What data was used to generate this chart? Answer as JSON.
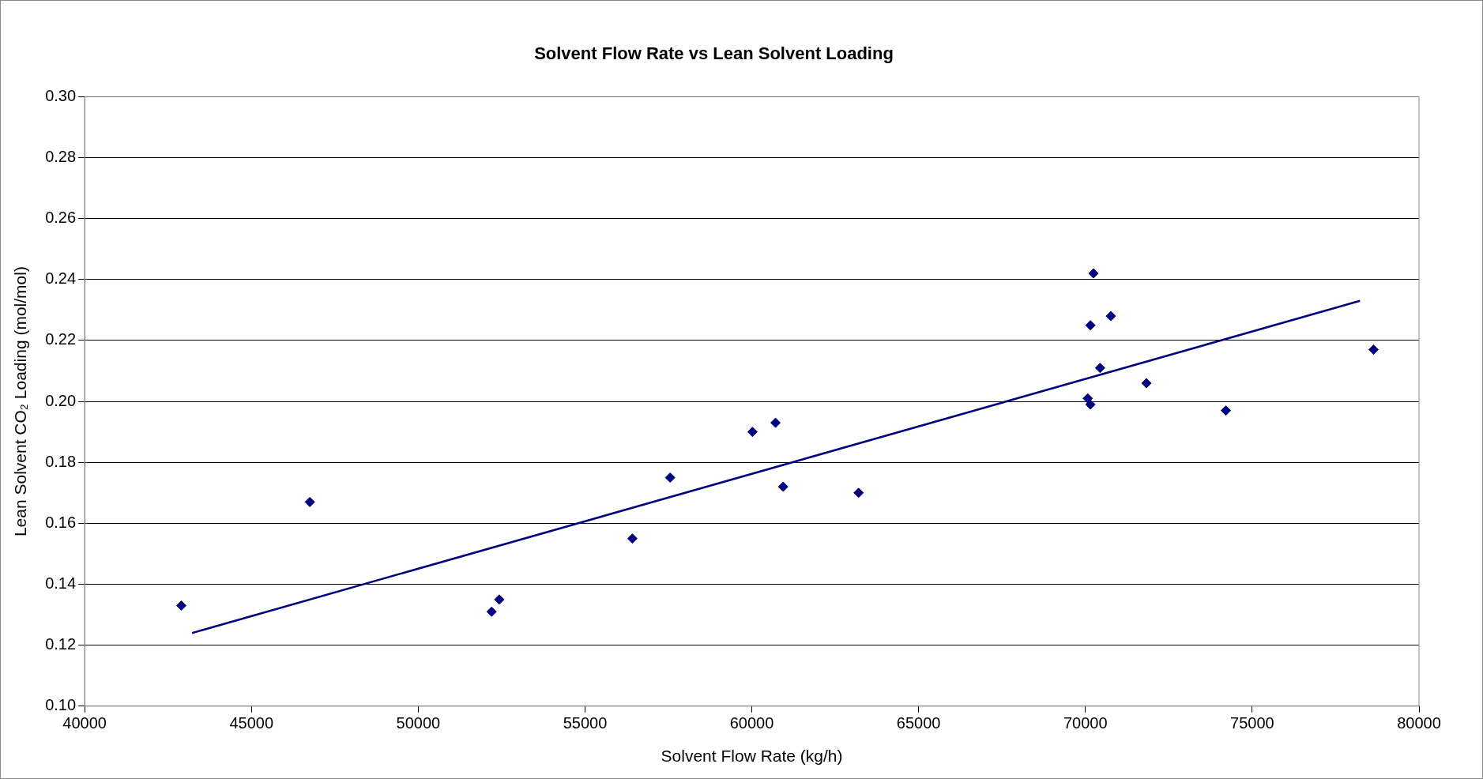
{
  "chart_data": {
    "type": "scatter",
    "title": "Solvent Flow Rate vs Lean Solvent Loading",
    "xlabel": "Solvent Flow Rate (kg/h)",
    "ylabel": "Lean Solvent CO₂ Loading (mol/mol)",
    "xlim": [
      40000,
      80000
    ],
    "xticks": [
      40000,
      45000,
      50000,
      55000,
      60000,
      65000,
      70000,
      75000,
      80000
    ],
    "ylim": [
      0.1,
      0.3
    ],
    "yticks": [
      {
        "value": 0.1,
        "label": "0.10"
      },
      {
        "value": 0.12,
        "label": "0.12"
      },
      {
        "value": 0.14,
        "label": "0.14"
      },
      {
        "value": 0.16,
        "label": "0.16"
      },
      {
        "value": 0.18,
        "label": "0.18"
      },
      {
        "value": 0.2,
        "label": "0.20"
      },
      {
        "value": 0.22,
        "label": "0.22"
      },
      {
        "value": 0.24,
        "label": "0.24"
      },
      {
        "value": 0.26,
        "label": "0.26"
      },
      {
        "value": 0.28,
        "label": "0.28"
      },
      {
        "value": 0.3,
        "label": "0.30"
      }
    ],
    "grid": "y",
    "legend": false,
    "marker": "diamond",
    "series": [
      {
        "type": "scatter",
        "color": "#000080",
        "x": [
          42900,
          46750,
          52200,
          52430,
          56420,
          57550,
          60020,
          60710,
          60940,
          63200,
          70240,
          70150,
          70760,
          70440,
          70070,
          70150,
          71830,
          74210,
          78640
        ],
        "values": [
          0.133,
          0.167,
          0.131,
          0.135,
          0.155,
          0.175,
          0.19,
          0.193,
          0.172,
          0.17,
          0.242,
          0.225,
          0.228,
          0.211,
          0.201,
          0.199,
          0.206,
          0.197,
          0.217
        ]
      },
      {
        "type": "line",
        "color": "#000080",
        "line_style": "solid",
        "marker": "none",
        "x": [
          43220,
          78230
        ],
        "values": [
          0.124,
          0.233
        ]
      }
    ]
  }
}
